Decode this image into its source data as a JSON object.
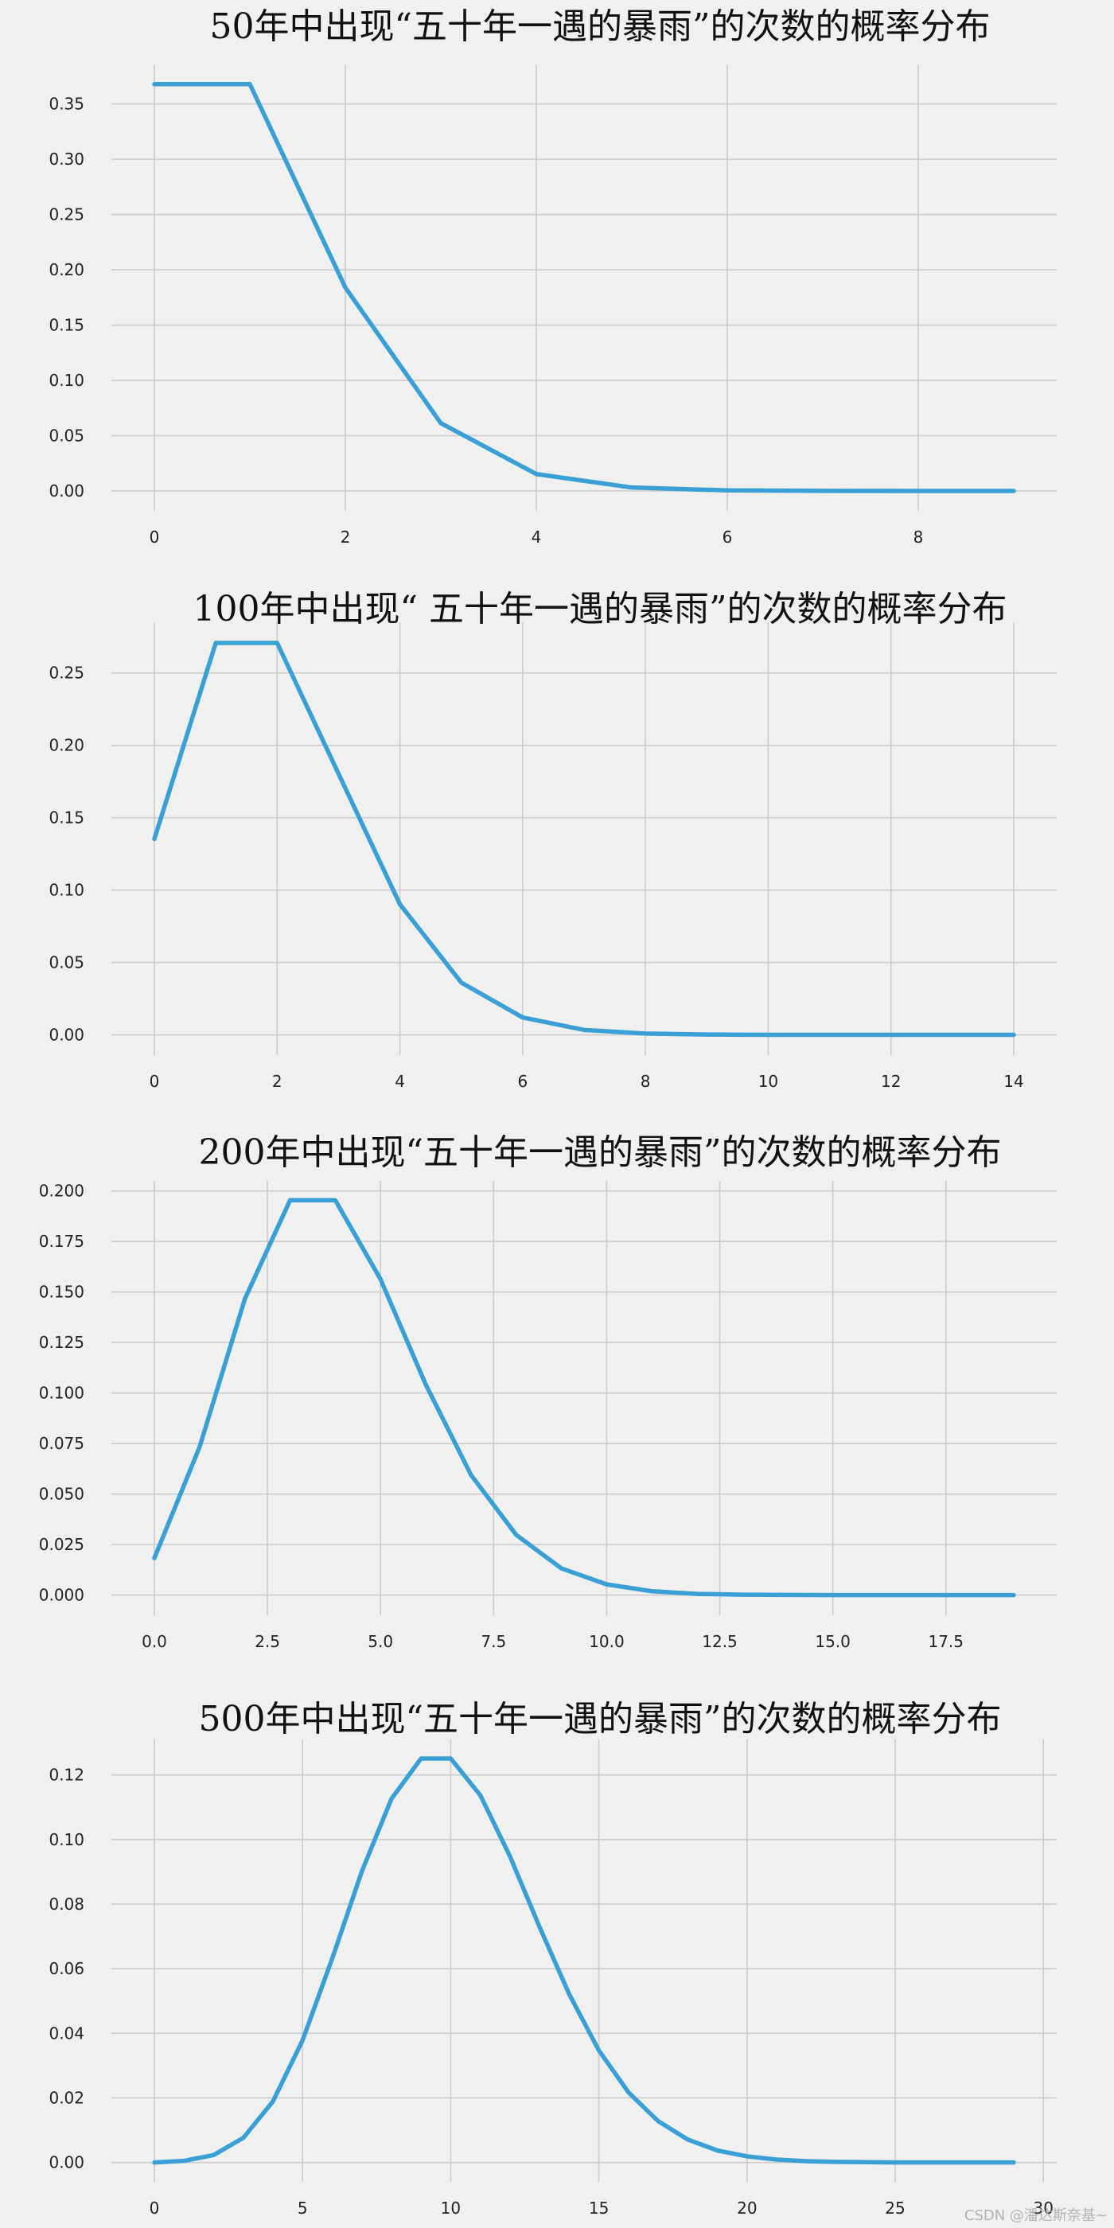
{
  "chart_data": [
    {
      "type": "line",
      "title": "50年中出现“五十年一遇的暴雨”的次数的概率分布",
      "x": [
        0,
        1,
        2,
        3,
        4,
        5,
        6,
        7,
        8,
        9
      ],
      "series": [
        {
          "values": [
            0.3679,
            0.3679,
            0.1839,
            0.0613,
            0.0153,
            0.0031,
            0.0005,
            0.0001,
            0.0,
            0.0
          ]
        }
      ],
      "xticks": [
        0,
        2,
        4,
        6,
        8
      ],
      "xtick_labels": [
        "0",
        "2",
        "4",
        "6",
        "8"
      ],
      "yticks": [
        0,
        0.05,
        0.1,
        0.15,
        0.2,
        0.25,
        0.3,
        0.35
      ],
      "ytick_labels": [
        "0.00",
        "0.05",
        "0.10",
        "0.15",
        "0.20",
        "0.25",
        "0.30",
        "0.35"
      ],
      "xlim": [
        -0.45,
        9.45
      ],
      "ylim": [
        -0.018,
        0.385
      ],
      "color": "#3a9fd5",
      "grid": true
    },
    {
      "type": "line",
      "title": "100年中出现“ 五十年一遇的暴雨”的次数的概率分布",
      "x": [
        0,
        1,
        2,
        3,
        4,
        5,
        6,
        7,
        8,
        9,
        10,
        11,
        12,
        13,
        14
      ],
      "series": [
        {
          "values": [
            0.1353,
            0.2707,
            0.2707,
            0.1804,
            0.0902,
            0.0361,
            0.012,
            0.0034,
            0.0009,
            0.0002,
            0.0,
            0.0,
            0.0,
            0.0,
            0.0
          ]
        }
      ],
      "xticks": [
        0,
        2,
        4,
        6,
        8,
        10,
        12,
        14
      ],
      "xtick_labels": [
        "0",
        "2",
        "4",
        "6",
        "8",
        "10",
        "12",
        "14"
      ],
      "yticks": [
        0,
        0.05,
        0.1,
        0.15,
        0.2,
        0.25
      ],
      "ytick_labels": [
        "0.00",
        "0.05",
        "0.10",
        "0.15",
        "0.20",
        "0.25"
      ],
      "xlim": [
        -0.7,
        14.7
      ],
      "ylim": [
        -0.014,
        0.285
      ],
      "color": "#3a9fd5",
      "grid": true
    },
    {
      "type": "line",
      "title": "200年中出现“五十年一遇的暴雨”的次数的概率分布",
      "x": [
        0,
        1,
        2,
        3,
        4,
        5,
        6,
        7,
        8,
        9,
        10,
        11,
        12,
        13,
        14,
        15,
        16,
        17,
        18,
        19
      ],
      "series": [
        {
          "values": [
            0.0183,
            0.0733,
            0.1465,
            0.1954,
            0.1954,
            0.1563,
            0.1042,
            0.0595,
            0.0298,
            0.0132,
            0.0053,
            0.0019,
            0.0006,
            0.0002,
            0.0001,
            0.0,
            0.0,
            0.0,
            0.0,
            0.0
          ]
        }
      ],
      "xticks": [
        0,
        2.5,
        5,
        7.5,
        10,
        12.5,
        15,
        17.5
      ],
      "xtick_labels": [
        "0.0",
        "2.5",
        "5.0",
        "7.5",
        "10.0",
        "12.5",
        "15.0",
        "17.5"
      ],
      "yticks": [
        0,
        0.025,
        0.05,
        0.075,
        0.1,
        0.125,
        0.15,
        0.175,
        0.2
      ],
      "ytick_labels": [
        "0.000",
        "0.025",
        "0.050",
        "0.075",
        "0.100",
        "0.125",
        "0.150",
        "0.175",
        "0.200"
      ],
      "xlim": [
        -0.95,
        19.95
      ],
      "ylim": [
        -0.01,
        0.205
      ],
      "color": "#3a9fd5",
      "grid": true
    },
    {
      "type": "line",
      "title": "500年中出现“五十年一遇的暴雨”的次数的概率分布",
      "x": [
        0,
        1,
        2,
        3,
        4,
        5,
        6,
        7,
        8,
        9,
        10,
        11,
        12,
        13,
        14,
        15,
        16,
        17,
        18,
        19,
        20,
        21,
        22,
        23,
        24,
        25,
        26,
        27,
        28,
        29
      ],
      "series": [
        {
          "values": [
            0.0,
            0.0005,
            0.0023,
            0.0076,
            0.0189,
            0.0378,
            0.0631,
            0.0901,
            0.1126,
            0.1251,
            0.1251,
            0.1137,
            0.0948,
            0.0729,
            0.0521,
            0.0347,
            0.0217,
            0.0128,
            0.0071,
            0.0037,
            0.0019,
            0.0009,
            0.0004,
            0.0002,
            0.0001,
            0.0,
            0.0,
            0.0,
            0.0,
            0.0
          ]
        }
      ],
      "xticks": [
        0,
        5,
        10,
        15,
        20,
        25,
        30
      ],
      "xtick_labels": [
        "0",
        "5",
        "10",
        "15",
        "20",
        "25",
        "30"
      ],
      "yticks": [
        0,
        0.02,
        0.04,
        0.06,
        0.08,
        0.1,
        0.12
      ],
      "ytick_labels": [
        "0.00",
        "0.02",
        "0.04",
        "0.06",
        "0.08",
        "0.10",
        "0.12"
      ],
      "xlim": [
        -1.45,
        30.45
      ],
      "ylim": [
        -0.006,
        0.131
      ],
      "color": "#3a9fd5",
      "grid": true
    }
  ],
  "watermark": "CSDN @潘达斯奈基~"
}
